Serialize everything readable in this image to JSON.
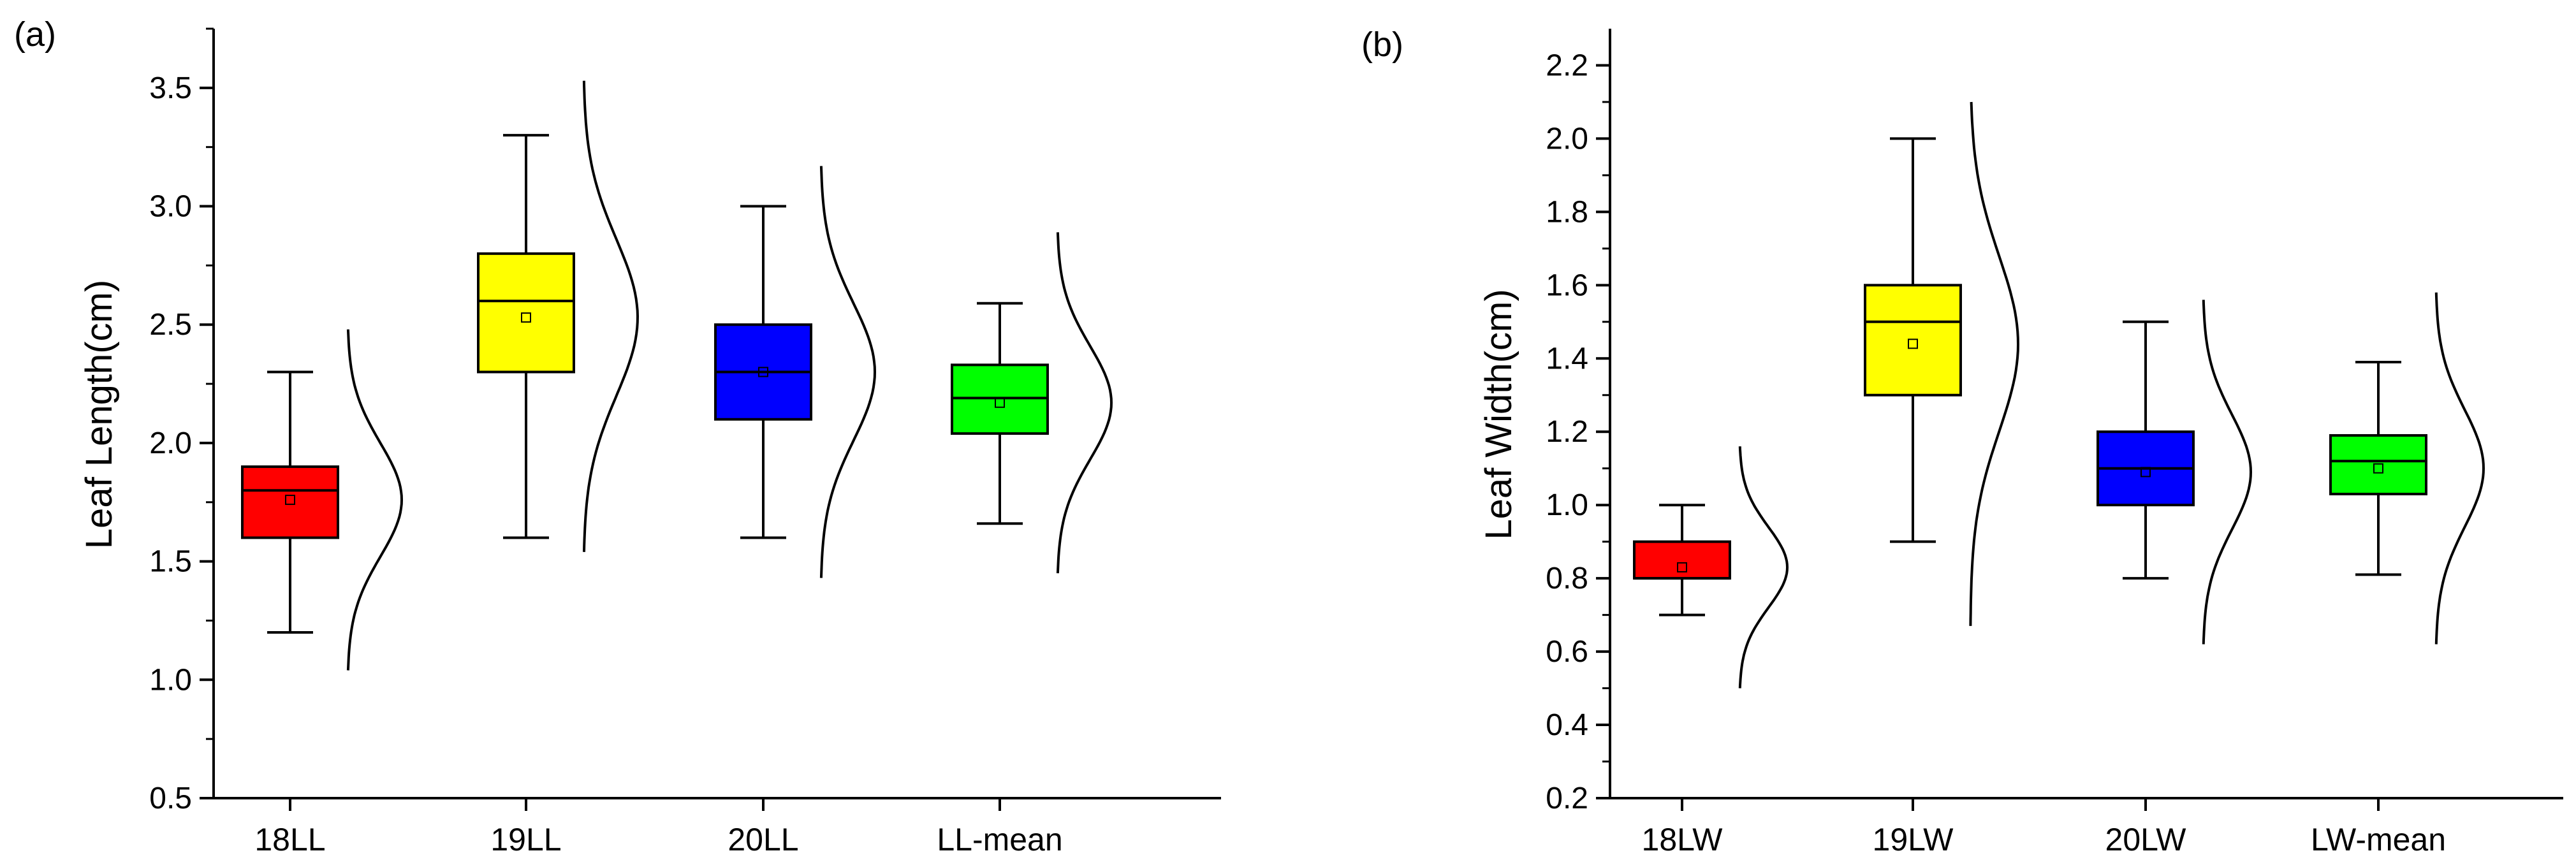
{
  "chart_data": [
    {
      "type": "box",
      "panel_label": "(a)",
      "ylabel": "Leaf Length(cm)",
      "xlabel": "",
      "ylim": [
        0.5,
        3.75
      ],
      "yticks": [
        "0.5",
        "1.0",
        "1.5",
        "2.0",
        "2.5",
        "3.0",
        "3.5"
      ],
      "grid": false,
      "categories": [
        "18LL",
        "19LL",
        "20LL",
        "LL-mean"
      ],
      "boxes": [
        {
          "category": "18LL",
          "color": "#ff0000",
          "min": 1.2,
          "q1": 1.6,
          "median": 1.8,
          "q3": 1.9,
          "max": 2.3,
          "mean": 1.76,
          "dist_low": 1.04,
          "dist_high": 2.48
        },
        {
          "category": "19LL",
          "color": "#ffff00",
          "min": 1.6,
          "q1": 2.3,
          "median": 2.6,
          "q3": 2.8,
          "max": 3.3,
          "mean": 2.53,
          "dist_low": 1.54,
          "dist_high": 3.53
        },
        {
          "category": "20LL",
          "color": "#0000ff",
          "min": 1.6,
          "q1": 2.1,
          "median": 2.3,
          "q3": 2.5,
          "max": 3.0,
          "mean": 2.3,
          "dist_low": 1.43,
          "dist_high": 3.17
        },
        {
          "category": "LL-mean",
          "color": "#00ff00",
          "min": 1.66,
          "q1": 2.04,
          "median": 2.19,
          "q3": 2.33,
          "max": 2.59,
          "mean": 2.17,
          "dist_low": 1.45,
          "dist_high": 2.89
        }
      ]
    },
    {
      "type": "box",
      "panel_label": "(b)",
      "ylabel": "Leaf Width(cm)",
      "xlabel": "",
      "ylim": [
        0.2,
        2.3
      ],
      "yticks": [
        "0.2",
        "0.4",
        "0.6",
        "0.8",
        "1.0",
        "1.2",
        "1.4",
        "1.6",
        "1.8",
        "2.0",
        "2.2"
      ],
      "grid": false,
      "categories": [
        "18LW",
        "19LW",
        "20LW",
        "LW-mean"
      ],
      "boxes": [
        {
          "category": "18LW",
          "color": "#ff0000",
          "min": 0.7,
          "q1": 0.8,
          "median": 0.8,
          "q3": 0.9,
          "max": 1.0,
          "mean": 0.83,
          "dist_low": 0.5,
          "dist_high": 1.16
        },
        {
          "category": "19LW",
          "color": "#ffff00",
          "min": 0.9,
          "q1": 1.3,
          "median": 1.5,
          "q3": 1.6,
          "max": 2.0,
          "mean": 1.44,
          "dist_low": 0.67,
          "dist_high": 2.1
        },
        {
          "category": "20LW",
          "color": "#0000ff",
          "min": 0.8,
          "q1": 1.0,
          "median": 1.1,
          "q3": 1.2,
          "max": 1.5,
          "mean": 1.09,
          "dist_low": 0.62,
          "dist_high": 1.56
        },
        {
          "category": "LW-mean",
          "color": "#00ff00",
          "min": 0.81,
          "q1": 1.03,
          "median": 1.12,
          "q3": 1.19,
          "max": 1.39,
          "mean": 1.1,
          "dist_low": 0.62,
          "dist_high": 1.58
        }
      ]
    }
  ]
}
